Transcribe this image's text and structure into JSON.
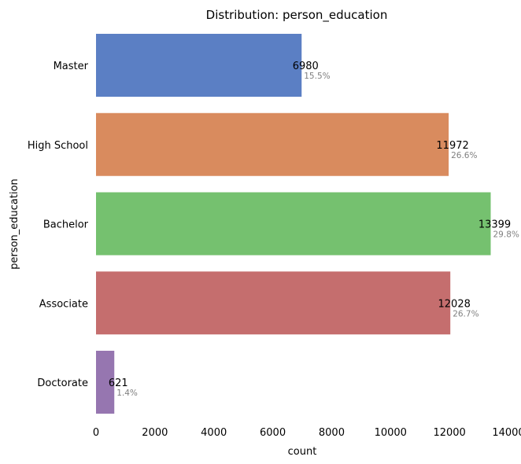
{
  "chart_data": {
    "type": "bar",
    "orientation": "horizontal",
    "title": "Distribution: person_education",
    "xlabel": "count",
    "ylabel": "person_education",
    "categories": [
      "Master",
      "High School",
      "Bachelor",
      "Associate",
      "Doctorate"
    ],
    "values": [
      6980,
      11972,
      13399,
      12028,
      621
    ],
    "value_labels": [
      "6980",
      "11972",
      "13399",
      "12028",
      "621"
    ],
    "percent_labels": [
      "15.5%",
      "26.6%",
      "29.8%",
      "26.7%",
      "1.4%"
    ],
    "colors": [
      "#5b7fc4",
      "#d98b5e",
      "#75c16f",
      "#c56e6e",
      "#9676b0"
    ],
    "xlim": [
      0,
      14000
    ],
    "xticks": [
      0,
      2000,
      4000,
      6000,
      8000,
      10000,
      12000,
      14000
    ],
    "xtick_labels": [
      "0",
      "2000",
      "4000",
      "6000",
      "8000",
      "10000",
      "12000",
      "14000"
    ],
    "grid": false,
    "legend": "none"
  }
}
